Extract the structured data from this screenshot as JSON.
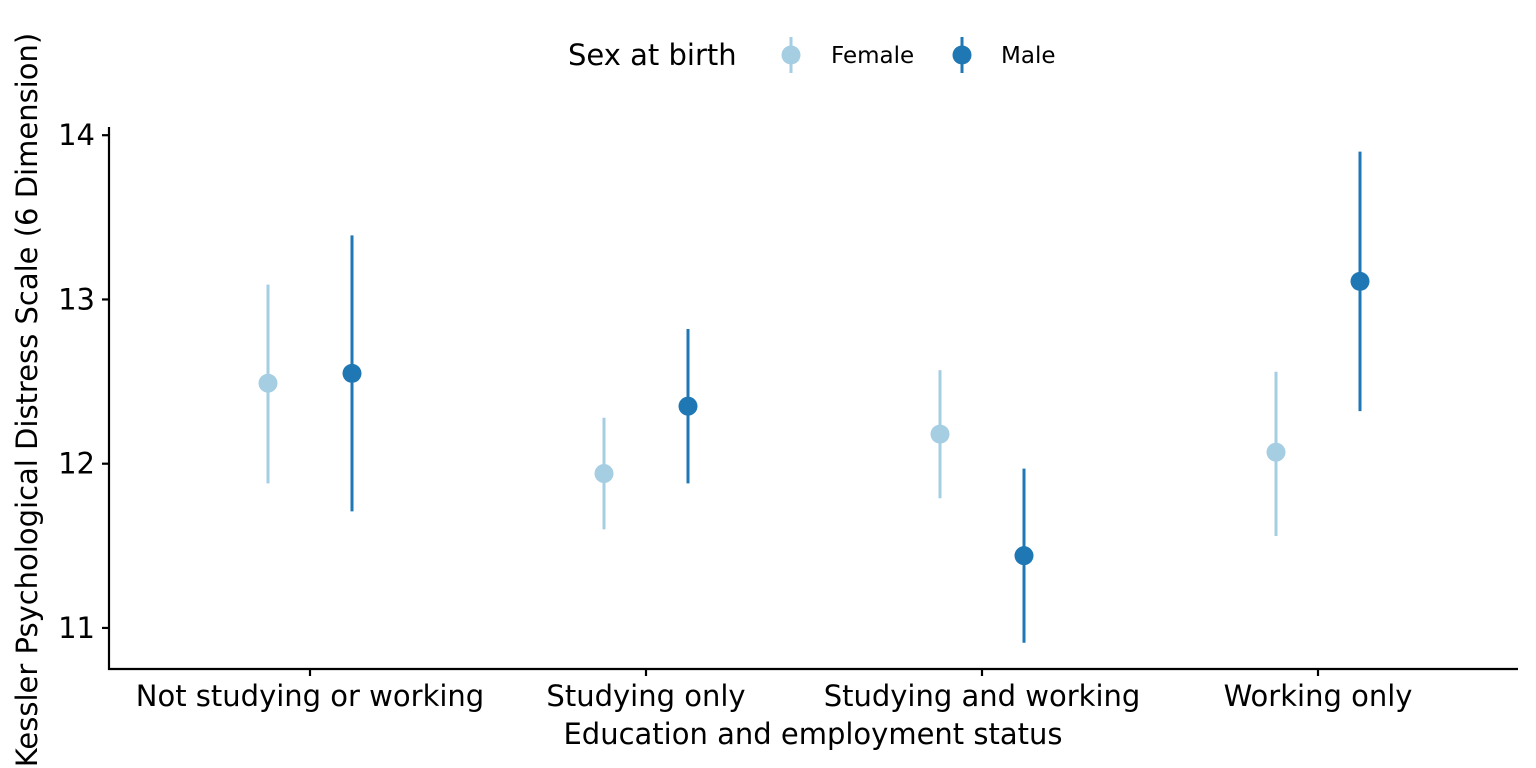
{
  "chart_data": {
    "type": "pointrange",
    "xlabel": "Education and employment status",
    "ylabel": "Kessler Psychological Distress Scale (6 Dimension)",
    "categories": [
      "Not studying or working",
      "Studying only",
      "Studying and working",
      "Working only"
    ],
    "ylim": [
      10.75,
      14.05
    ],
    "yticks": [
      11,
      12,
      13,
      14
    ],
    "ytick_labels": [
      "11",
      "12",
      "13",
      "14"
    ],
    "grid": false,
    "legend": {
      "title": "Sex at birth",
      "placement": "top"
    },
    "series": [
      {
        "name": "Female",
        "color": "#a6cee3",
        "values": [
          12.49,
          11.94,
          12.18,
          12.07
        ],
        "lower": [
          11.88,
          11.6,
          11.79,
          11.56
        ],
        "upper": [
          13.09,
          12.28,
          12.57,
          12.56
        ]
      },
      {
        "name": "Male",
        "color": "#1f78b4",
        "values": [
          12.55,
          12.35,
          11.44,
          13.11
        ],
        "lower": [
          11.71,
          11.88,
          10.91,
          12.32
        ],
        "upper": [
          13.39,
          12.82,
          11.97,
          13.9
        ]
      }
    ]
  }
}
